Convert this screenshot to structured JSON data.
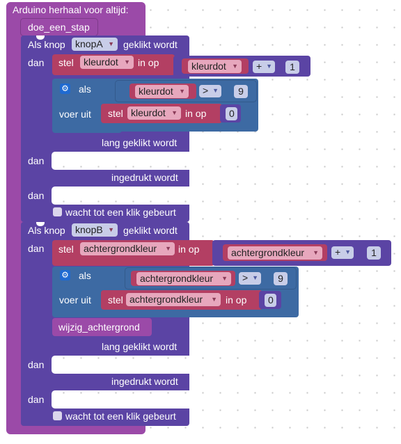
{
  "main_block": {
    "label": "Arduino herhaal voor altijd:"
  },
  "call_block": {
    "label": "doe_een_stap"
  },
  "button_a": {
    "prefix": "Als knop",
    "button": "knopA",
    "event": "geklikt wordt",
    "then": "dan",
    "set1": {
      "stel": "stel",
      "var": "kleurdot",
      "in_op": "in op",
      "rhs_var": "kleurdot",
      "op": "+",
      "num": "1"
    },
    "if": {
      "als": "als",
      "var": "kleurdot",
      "op": ">",
      "num": "9",
      "voer_uit": "voer uit",
      "set": {
        "stel": "stel",
        "var": "kleurdot",
        "in_op": "in op",
        "num": "0"
      }
    },
    "long_label": "lang geklikt wordt",
    "long_then": "dan",
    "pressed_label": "ingedrukt wordt",
    "pressed_then": "dan",
    "wait_label": "wacht tot een klik gebeurt"
  },
  "button_b": {
    "prefix": "Als knop",
    "button": "knopB",
    "event": "geklikt wordt",
    "then": "dan",
    "set1": {
      "stel": "stel",
      "var": "achtergrondkleur",
      "in_op": "in op",
      "rhs_var": "achtergrondkleur",
      "op": "+",
      "num": "1"
    },
    "if": {
      "als": "als",
      "var": "achtergrondkleur",
      "op": ">",
      "num": "9",
      "voer_uit": "voer uit",
      "set": {
        "stel": "stel",
        "var": "achtergrondkleur",
        "in_op": "in op",
        "num": "0"
      }
    },
    "proc": "wijzig_achtergrond",
    "long_label": "lang geklikt wordt",
    "long_then": "dan",
    "pressed_label": "ingedrukt wordt",
    "pressed_then": "dan",
    "wait_label": "wacht tot een klik gebeurt"
  },
  "colors": {
    "loop": "#9b4aa8",
    "event": "#5b44a4",
    "variable": "#b33f63",
    "logic": "#3d6aa3",
    "procedure": "#9b4aa8"
  }
}
